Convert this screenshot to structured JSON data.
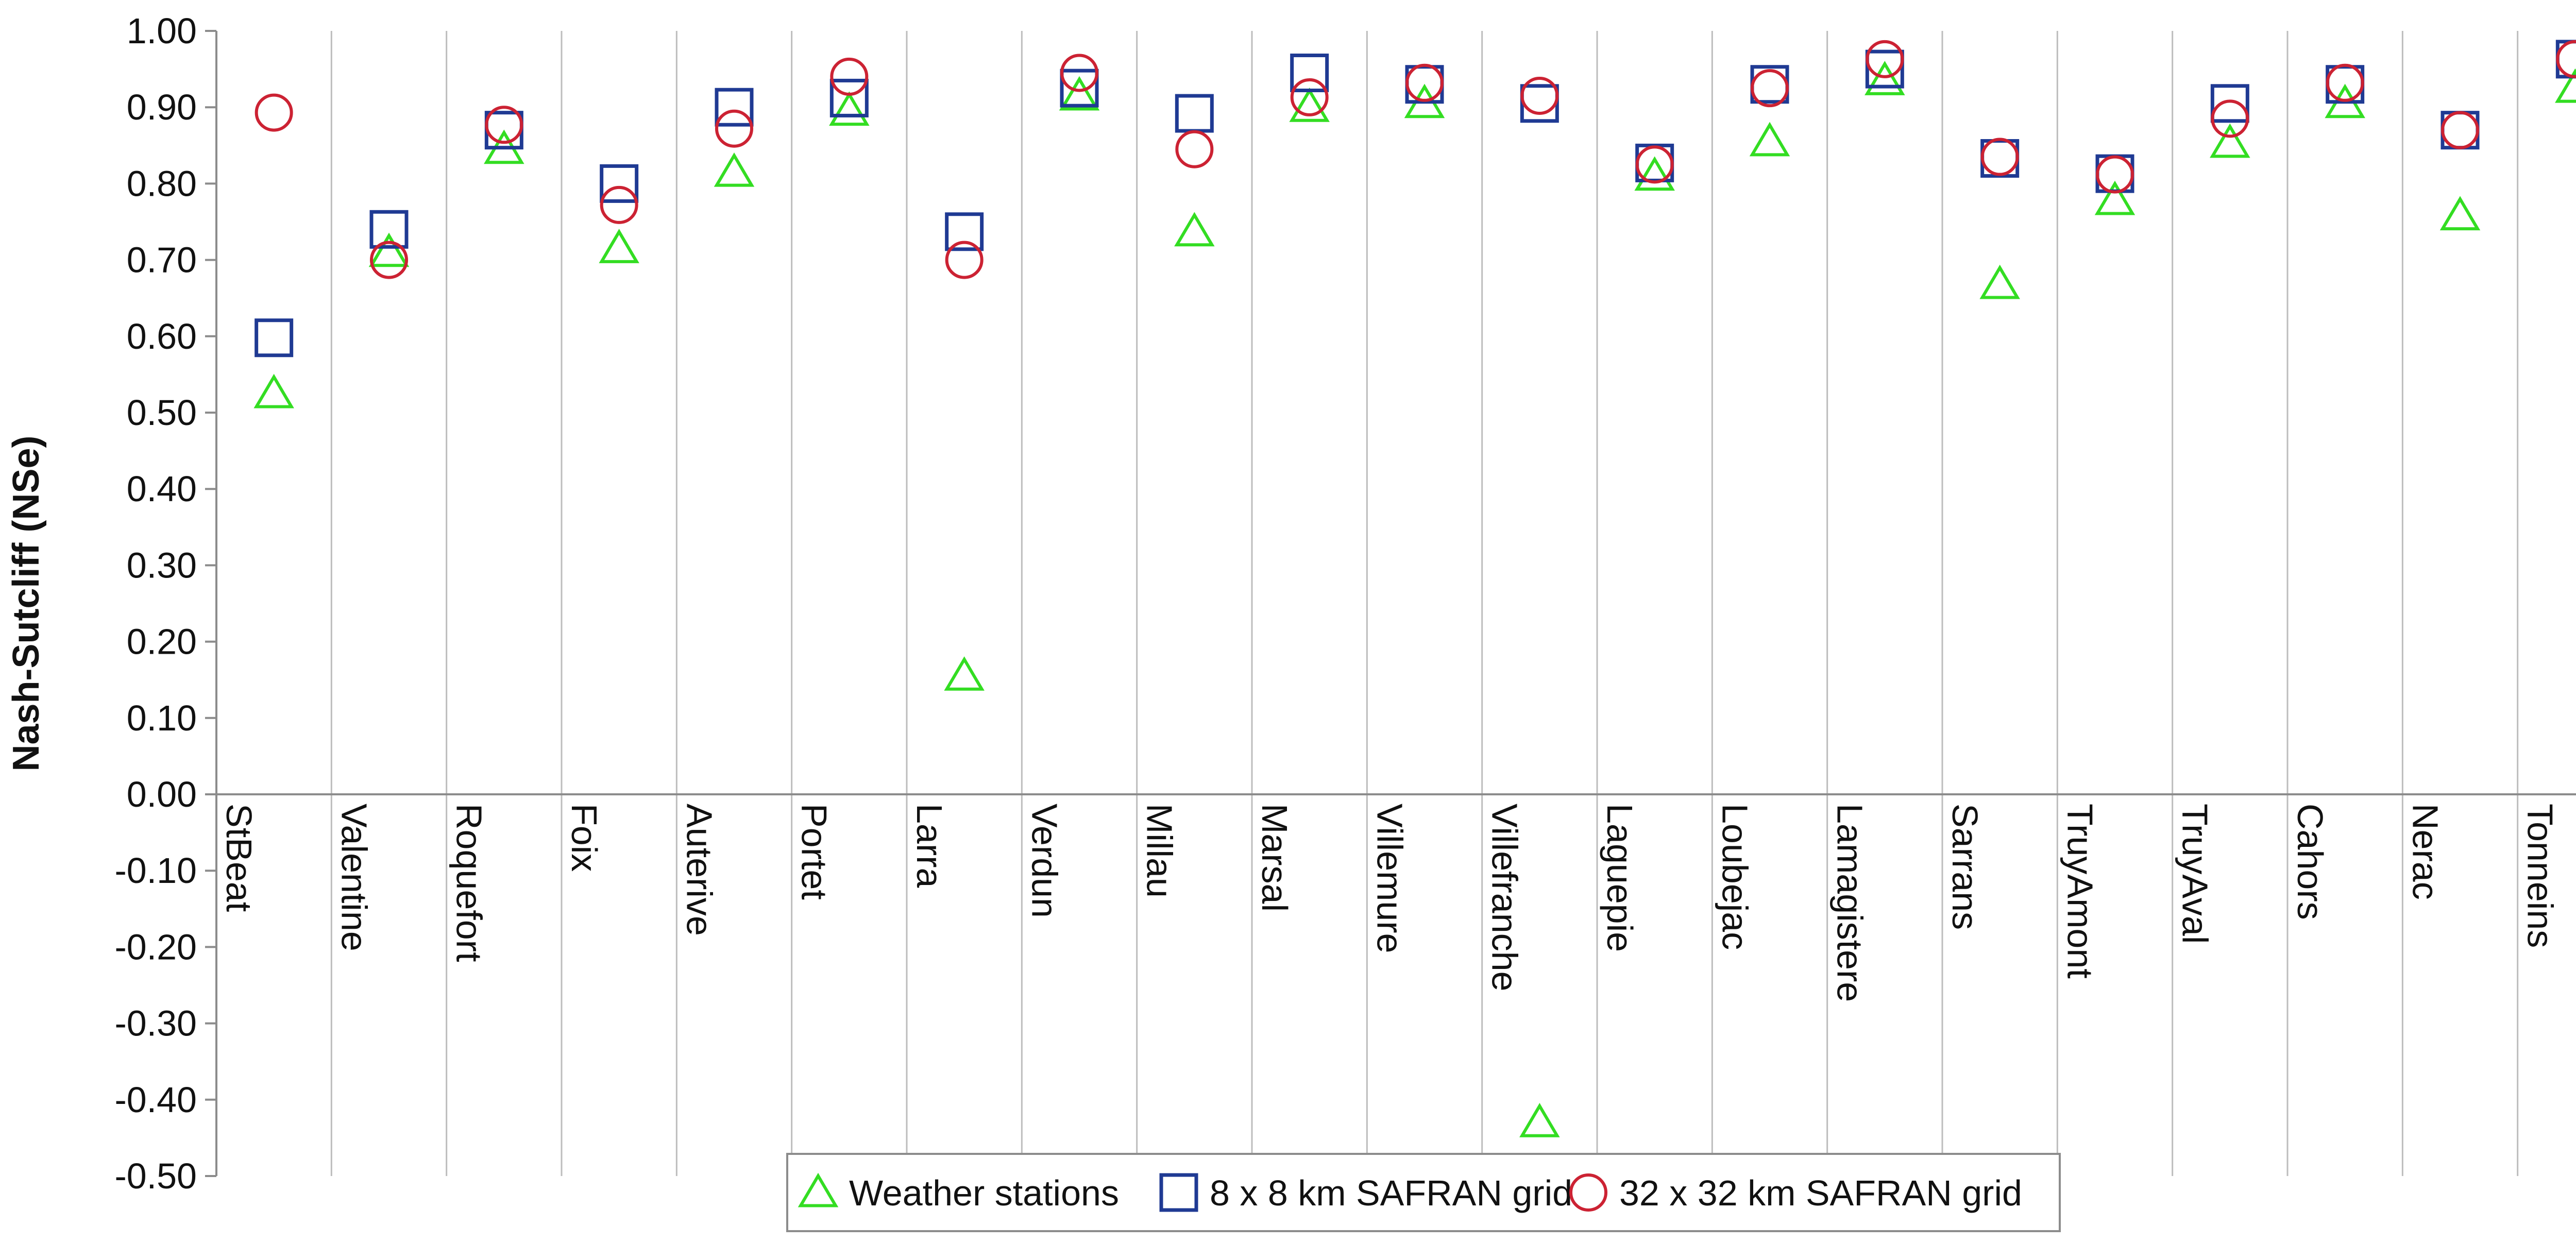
{
  "chart_data": {
    "type": "scatter",
    "title": "",
    "xlabel": "",
    "ylabel": "Nash-Sutcliff (NSe)",
    "ylim": [
      -0.5,
      1.0
    ],
    "ytick_step": 0.1,
    "grid": "vertical category separators",
    "legend_position": "bottom-center",
    "categories": [
      "StBeat",
      "Valentine",
      "Roquefort",
      "Foix",
      "Auterive",
      "Portet",
      "Larra",
      "Verdun",
      "Millau",
      "Marsal",
      "Villemure",
      "Villefranche",
      "Laguepie",
      "Loubejac",
      "Lamagistere",
      "Sarrans",
      "TruyAmont",
      "TruyAval",
      "Cahors",
      "Nerac",
      "Tonneins"
    ],
    "series": [
      {
        "name": "Weather stations",
        "marker": "triangle",
        "color": "#33dd22",
        "values": [
          0.525,
          0.71,
          0.845,
          0.715,
          0.815,
          0.895,
          0.155,
          0.915,
          0.737,
          0.9,
          0.905,
          -0.43,
          0.81,
          0.855,
          0.935,
          0.668,
          0.778,
          0.853,
          0.905,
          0.758,
          0.925
        ]
      },
      {
        "name": "8 x 8 km SAFRAN grid",
        "marker": "square",
        "color": "#1f3a93",
        "values": [
          0.598,
          0.74,
          0.87,
          0.8,
          0.9,
          0.912,
          0.737,
          0.925,
          0.892,
          0.945,
          0.93,
          0.905,
          0.827,
          0.93,
          0.95,
          0.833,
          0.813,
          0.905,
          0.93,
          0.87,
          0.963
        ]
      },
      {
        "name": "32 x 32 km SAFRAN grid",
        "marker": "circle",
        "color": "#cc2233",
        "values": [
          0.893,
          0.7,
          0.877,
          0.772,
          0.872,
          0.94,
          0.7,
          0.945,
          0.845,
          0.913,
          0.932,
          0.915,
          0.825,
          0.925,
          0.963,
          0.835,
          0.812,
          0.885,
          0.932,
          0.87,
          0.963
        ]
      }
    ]
  }
}
